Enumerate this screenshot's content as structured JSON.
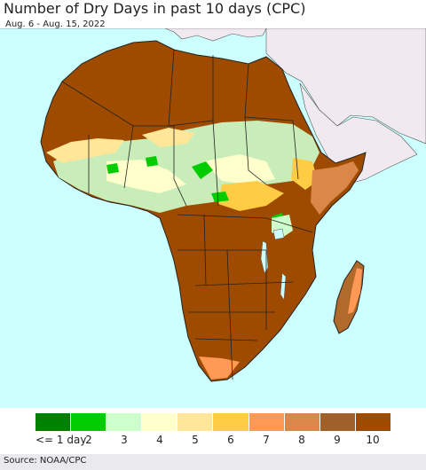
{
  "title": "Number of Dry Days in past 10 days (CPC)",
  "subtitle": "Aug. 6 - Aug. 15, 2022",
  "source": "Source: NOAA/CPC",
  "colors": {
    "ocean": "#ccffff",
    "outside_region": "#f0eaf0",
    "border": "#222222",
    "admin_border": "#777777"
  },
  "legend": {
    "items": [
      {
        "label": "<= 1 day",
        "color": "#008000"
      },
      {
        "label": "2",
        "color": "#00cc00"
      },
      {
        "label": "3",
        "color": "#ccffcc"
      },
      {
        "label": "4",
        "color": "#ffffcc"
      },
      {
        "label": "5",
        "color": "#ffe699"
      },
      {
        "label": "6",
        "color": "#ffcc44"
      },
      {
        "label": "7",
        "color": "#ff9955"
      },
      {
        "label": "8",
        "color": "#d9884a"
      },
      {
        "label": "9",
        "color": "#a0602a"
      },
      {
        "label": "10",
        "color": "#9e4b00"
      }
    ]
  }
}
